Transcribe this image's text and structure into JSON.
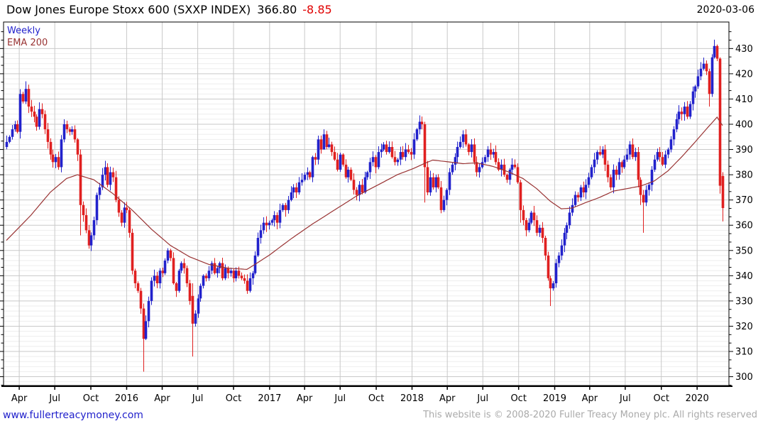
{
  "header": {
    "title": "Dow Jones Europe Stoxx 600 (SXXP INDEX)",
    "price": "366.80",
    "change": "-8.85",
    "date": "2020-03-06"
  },
  "legend": {
    "series": "Weekly",
    "overlay": "EMA 200"
  },
  "footer": {
    "site": "www.fullertreacymoney.com",
    "copyright": "This website is © 2008-2020 Fuller Treacy Money plc. All rights reserved"
  },
  "colors": {
    "up": "#2222cc",
    "down": "#e02020",
    "ema": "#993333",
    "grid": "#c9c9c9",
    "grid_minor": "#eeeeee",
    "change_red": "#e00000",
    "link_blue": "#2222cc",
    "copyright_gray": "#aaaaaa"
  },
  "chart_data": {
    "type": "candlestick",
    "title": "Dow Jones Europe Stoxx 600 (SXXP INDEX)",
    "last_price": 366.8,
    "last_change": -8.85,
    "last_date": "2020-03-06",
    "interval": "weekly",
    "overlay": "EMA 200",
    "ylim": [
      296.5,
      440.5
    ],
    "y_ticks": [
      300,
      310,
      320,
      330,
      340,
      350,
      360,
      370,
      380,
      390,
      400,
      410,
      420,
      430
    ],
    "x_ticks": [
      {
        "label": "Apr",
        "week": 4.7
      },
      {
        "label": "Jul",
        "week": 17.7
      },
      {
        "label": "Oct",
        "week": 30.9
      },
      {
        "label": "2016",
        "week": 44.0
      },
      {
        "label": "Apr",
        "week": 57.0
      },
      {
        "label": "Jul",
        "week": 70.0
      },
      {
        "label": "Oct",
        "week": 83.1
      },
      {
        "label": "2017",
        "week": 96.3
      },
      {
        "label": "Apr",
        "week": 109.1
      },
      {
        "label": "Jul",
        "week": 122.1
      },
      {
        "label": "Oct",
        "week": 135.3
      },
      {
        "label": "2018",
        "week": 148.4
      },
      {
        "label": "Apr",
        "week": 161.3
      },
      {
        "label": "Jul",
        "week": 174.3
      },
      {
        "label": "Oct",
        "week": 187.4
      },
      {
        "label": "2019",
        "week": 200.6
      },
      {
        "label": "Apr",
        "week": 213.4
      },
      {
        "label": "Jul",
        "week": 226.4
      },
      {
        "label": "Oct",
        "week": 239.6
      },
      {
        "label": "2020",
        "week": 252.7
      }
    ],
    "closes": [
      393,
      395,
      398,
      400,
      397,
      412,
      409,
      414,
      407,
      405,
      403,
      399,
      406,
      404,
      398,
      393,
      388,
      385,
      387,
      383,
      394,
      400,
      398,
      397,
      398,
      394,
      388,
      368,
      364,
      358,
      352,
      356,
      362,
      372,
      375,
      380,
      383,
      376,
      381,
      379,
      370,
      365,
      361,
      367,
      366,
      357,
      342,
      337,
      334,
      327,
      315,
      322,
      330,
      338,
      340,
      337,
      342,
      341,
      346,
      350,
      347,
      337,
      334,
      342,
      345,
      343,
      337,
      330,
      321,
      325,
      331,
      336,
      340,
      339,
      342,
      345,
      341,
      343,
      345,
      339,
      343,
      341,
      342,
      339,
      342,
      340,
      339,
      338,
      334,
      339,
      341,
      348,
      355,
      358,
      361,
      360,
      361,
      362,
      364,
      361,
      366,
      368,
      366,
      370,
      373,
      375,
      373,
      377,
      378,
      380,
      381,
      379,
      387,
      386,
      394,
      390,
      396,
      391,
      392,
      389,
      386,
      382,
      388,
      384,
      379,
      382,
      378,
      374,
      372,
      376,
      373,
      379,
      381,
      385,
      387,
      383,
      389,
      390,
      392,
      389,
      391,
      387,
      385,
      386,
      389,
      387,
      390,
      389,
      388,
      394,
      398,
      401,
      400,
      383,
      373,
      379,
      375,
      379,
      375,
      366,
      370,
      374,
      381,
      384,
      387,
      391,
      393,
      396,
      392,
      389,
      392,
      385,
      381,
      383,
      385,
      387,
      390,
      388,
      389,
      385,
      382,
      384,
      380,
      378,
      382,
      384,
      383,
      377,
      366,
      362,
      358,
      361,
      365,
      362,
      357,
      359,
      355,
      348,
      339,
      335,
      337,
      345,
      348,
      352,
      357,
      360,
      365,
      368,
      372,
      371,
      375,
      373,
      376,
      379,
      383,
      386,
      389,
      388,
      390,
      384,
      379,
      375,
      382,
      380,
      385,
      383,
      386,
      388,
      392,
      387,
      389,
      378,
      372,
      369,
      374,
      376,
      382,
      386,
      389,
      387,
      384,
      388,
      390,
      394,
      398,
      402,
      405,
      404,
      407,
      403,
      408,
      413,
      415,
      419,
      422,
      424,
      421,
      412,
      426.5,
      431,
      426,
      375.65,
      366.8
    ],
    "ohlc_overrides": {
      "7": [
        409,
        417,
        408,
        414
      ],
      "27": [
        388,
        390,
        356,
        368
      ],
      "50": [
        327,
        329,
        302,
        315
      ],
      "68": [
        332,
        337,
        308,
        321
      ],
      "116": [
        390,
        398,
        391,
        396
      ],
      "151": [
        398,
        403.5,
        396,
        401
      ],
      "153": [
        400,
        401,
        369,
        383
      ],
      "188": [
        377,
        378,
        361,
        366
      ],
      "199": [
        339,
        340,
        328,
        335
      ],
      "231": [
        389,
        391,
        375,
        378
      ],
      "232": [
        378,
        379,
        368,
        372
      ],
      "233": [
        372,
        374,
        357,
        369
      ],
      "257": [
        421,
        422,
        407,
        412
      ],
      "259": [
        426.5,
        433.5,
        426,
        431
      ],
      "261": [
        426,
        426.5,
        372.5,
        375.65
      ],
      "262": [
        379.5,
        381,
        361.5,
        366.8
      ]
    },
    "ema200_keypoints": [
      [
        0,
        354
      ],
      [
        9,
        364
      ],
      [
        16,
        373
      ],
      [
        22,
        378.5
      ],
      [
        26,
        380
      ],
      [
        32,
        378
      ],
      [
        39,
        372.5
      ],
      [
        46,
        366
      ],
      [
        53,
        358.5
      ],
      [
        60,
        352
      ],
      [
        67,
        347.5
      ],
      [
        74,
        344.5
      ],
      [
        81,
        343
      ],
      [
        88,
        342.5
      ],
      [
        96,
        348
      ],
      [
        104,
        354.5
      ],
      [
        112,
        360.5
      ],
      [
        120,
        366
      ],
      [
        128,
        371.5
      ],
      [
        136,
        376
      ],
      [
        143,
        380
      ],
      [
        149,
        382.5
      ],
      [
        153,
        384.5
      ],
      [
        156,
        385.8
      ],
      [
        161,
        385.2
      ],
      [
        167,
        384.4
      ],
      [
        172,
        384.7
      ],
      [
        178,
        383.3
      ],
      [
        184,
        381
      ],
      [
        189,
        378.5
      ],
      [
        194,
        374.5
      ],
      [
        199,
        369.5
      ],
      [
        203,
        366.5
      ],
      [
        207,
        366.8
      ],
      [
        212,
        369
      ],
      [
        217,
        371
      ],
      [
        222,
        373.5
      ],
      [
        227,
        374.5
      ],
      [
        232,
        375.5
      ],
      [
        237,
        377.5
      ],
      [
        242,
        381.5
      ],
      [
        247,
        387
      ],
      [
        252,
        393
      ],
      [
        256,
        398
      ],
      [
        260,
        402.8
      ],
      [
        262,
        399.5
      ]
    ]
  }
}
